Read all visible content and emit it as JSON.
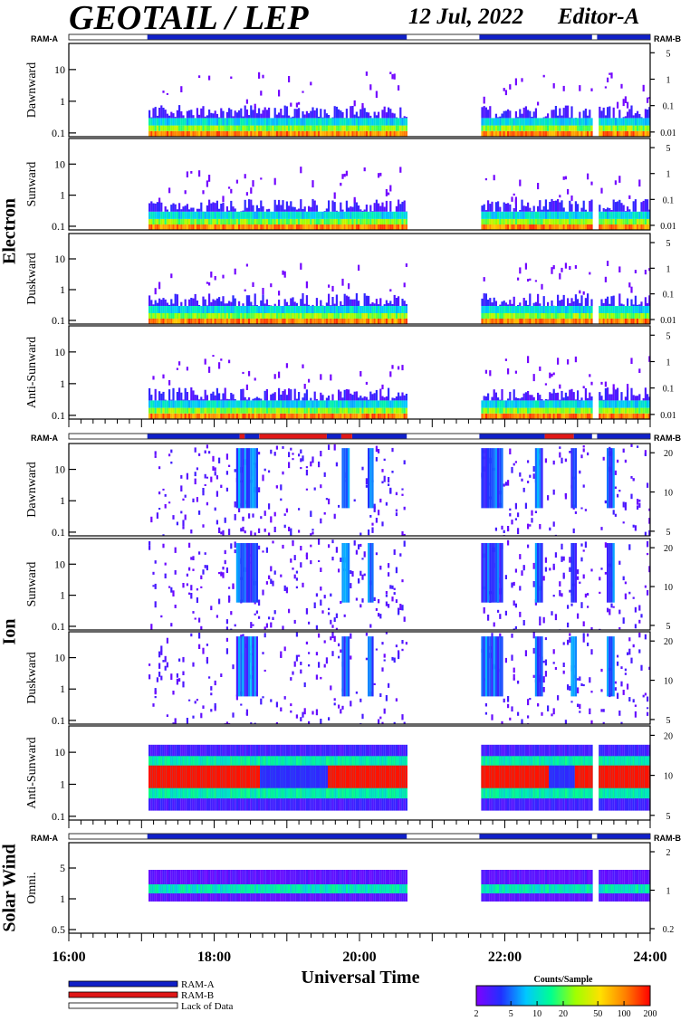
{
  "header": {
    "instrument": "GEOTAIL / LEP",
    "date": "12 Jul, 2022",
    "editor": "Editor-A"
  },
  "colors": {
    "ram_a": "#1020c8",
    "ram_b": "#e01818",
    "lack": "#ffffff",
    "axis": "#000000"
  },
  "chart_data": {
    "type": "heatmap",
    "xlabel": "Universal Time",
    "x_ticks": [
      "16:00",
      "18:00",
      "20:00",
      "22:00",
      "24:00"
    ],
    "x_range_hours": [
      16,
      24
    ],
    "data_intervals_hours": [
      [
        17.08,
        20.65
      ],
      [
        21.65,
        24.0
      ]
    ],
    "groups": [
      {
        "label": "Electron",
        "ram_left": "RAM-A",
        "ram_right": "RAM-B",
        "ram_segments": [
          {
            "start": 16.0,
            "end": 17.08,
            "mode": "lack"
          },
          {
            "start": 17.08,
            "end": 20.65,
            "mode": "ram_a"
          },
          {
            "start": 20.65,
            "end": 21.65,
            "mode": "lack"
          },
          {
            "start": 21.65,
            "end": 23.2,
            "mode": "ram_a"
          },
          {
            "start": 23.2,
            "end": 23.27,
            "mode": "lack"
          },
          {
            "start": 23.27,
            "end": 24.0,
            "mode": "ram_a"
          }
        ],
        "panels": [
          {
            "label": "Dawnward",
            "left_ticks": [
              "10",
              "1",
              "0.1"
            ],
            "right_ticks": [
              "5",
              "1",
              "0.1",
              "0.01"
            ]
          },
          {
            "label": "Sunward",
            "left_ticks": [
              "10",
              "1",
              "0.1"
            ],
            "right_ticks": [
              "5",
              "1",
              "0.1",
              "0.01"
            ]
          },
          {
            "label": "Duskward",
            "left_ticks": [
              "10",
              "1",
              "0.1"
            ],
            "right_ticks": [
              "5",
              "1",
              "0.1",
              "0.01"
            ]
          },
          {
            "label": "Anti-Sunward",
            "left_ticks": [
              "10",
              "1",
              "0.1"
            ],
            "right_ticks": [
              "5",
              "1",
              "0.1",
              "0.01"
            ]
          }
        ]
      },
      {
        "label": "Ion",
        "ram_left": "RAM-A",
        "ram_right": "RAM-B",
        "ram_segments": [
          {
            "start": 16.0,
            "end": 17.08,
            "mode": "lack"
          },
          {
            "start": 17.08,
            "end": 18.35,
            "mode": "ram_a"
          },
          {
            "start": 18.35,
            "end": 18.42,
            "mode": "ram_b"
          },
          {
            "start": 18.42,
            "end": 18.62,
            "mode": "ram_a"
          },
          {
            "start": 18.62,
            "end": 19.55,
            "mode": "ram_b"
          },
          {
            "start": 19.55,
            "end": 19.75,
            "mode": "ram_a"
          },
          {
            "start": 19.75,
            "end": 19.9,
            "mode": "ram_b"
          },
          {
            "start": 19.9,
            "end": 20.65,
            "mode": "ram_a"
          },
          {
            "start": 20.65,
            "end": 21.65,
            "mode": "lack"
          },
          {
            "start": 21.65,
            "end": 22.55,
            "mode": "ram_a"
          },
          {
            "start": 22.55,
            "end": 22.95,
            "mode": "ram_b"
          },
          {
            "start": 22.95,
            "end": 23.2,
            "mode": "ram_a"
          },
          {
            "start": 23.2,
            "end": 23.27,
            "mode": "lack"
          },
          {
            "start": 23.27,
            "end": 24.0,
            "mode": "ram_a"
          }
        ],
        "panels": [
          {
            "label": "Dawnward",
            "left_ticks": [
              "10",
              "1",
              "0.1"
            ],
            "right_ticks": [
              "20",
              "10",
              "5"
            ]
          },
          {
            "label": "Sunward",
            "left_ticks": [
              "10",
              "1",
              "0.1"
            ],
            "right_ticks": [
              "20",
              "10",
              "5"
            ]
          },
          {
            "label": "Duskward",
            "left_ticks": [
              "10",
              "1",
              "0.1"
            ],
            "right_ticks": [
              "20",
              "10",
              "5"
            ]
          },
          {
            "label": "Anti-Sunward",
            "left_ticks": [
              "10",
              "1",
              "0.1"
            ],
            "right_ticks": [
              "20",
              "10",
              "5"
            ]
          }
        ]
      },
      {
        "label": "Solar Wind",
        "ram_left": "RAM-A",
        "ram_right": "RAM-B",
        "ram_segments": [
          {
            "start": 16.0,
            "end": 17.08,
            "mode": "lack"
          },
          {
            "start": 17.08,
            "end": 20.65,
            "mode": "ram_a"
          },
          {
            "start": 20.65,
            "end": 21.65,
            "mode": "lack"
          },
          {
            "start": 21.65,
            "end": 23.2,
            "mode": "ram_a"
          },
          {
            "start": 23.2,
            "end": 23.27,
            "mode": "lack"
          },
          {
            "start": 23.27,
            "end": 24.0,
            "mode": "ram_a"
          }
        ],
        "panels": [
          {
            "label": "Omni.",
            "left_ticks": [
              "5",
              "1",
              "0.5"
            ],
            "right_ticks": [
              "2",
              "1",
              "0.2"
            ]
          }
        ]
      }
    ],
    "legend": {
      "items": [
        {
          "label": "RAM-A",
          "mode": "ram_a"
        },
        {
          "label": "RAM-B",
          "mode": "ram_b"
        },
        {
          "label": "Lack of Data",
          "mode": "lack"
        }
      ]
    },
    "colorbar": {
      "title": "Counts/Sample",
      "ticks": [
        "2",
        "5",
        "10",
        "20",
        "50",
        "100",
        "200"
      ],
      "range": [
        2,
        200
      ],
      "scale": "log",
      "colors": [
        "#8000ff",
        "#2030ff",
        "#00c8ff",
        "#00ff90",
        "#a0ff00",
        "#ffe000",
        "#ff8000",
        "#ff0000"
      ]
    }
  }
}
